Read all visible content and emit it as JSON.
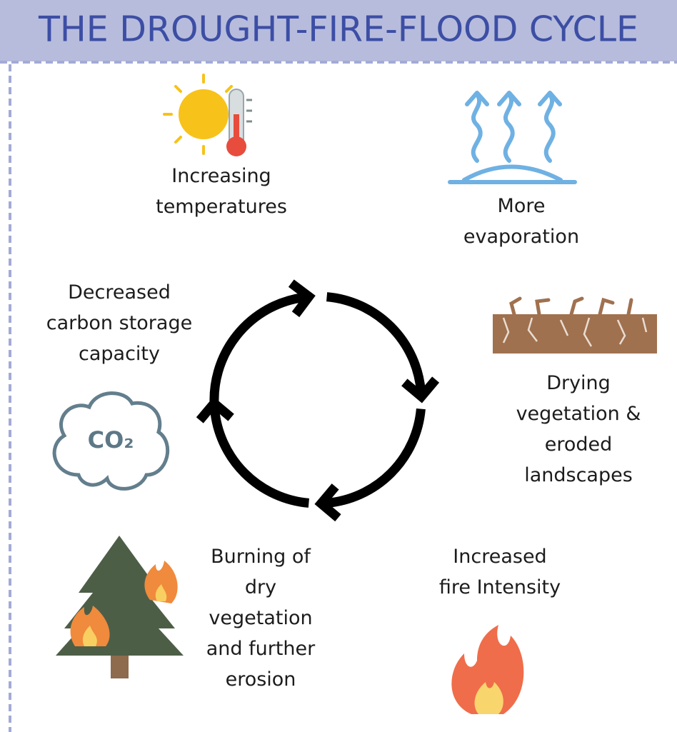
{
  "header": {
    "title": "THE DROUGHT-FIRE-FLOOD CYCLE"
  },
  "nodes": [
    {
      "label": [
        "Increasing",
        "temperatures"
      ]
    },
    {
      "label": [
        "More",
        "evaporation"
      ]
    },
    {
      "label": [
        "Drying",
        "vegetation &",
        "eroded",
        "landscapes"
      ]
    },
    {
      "label": [
        "Increased",
        "fire Intensity"
      ]
    },
    {
      "label": [
        "Burning of",
        "dry",
        "vegetation",
        "and further",
        "erosion"
      ]
    },
    {
      "label": [
        "Decreased",
        "carbon storage",
        "capacity"
      ],
      "icon_label": "CO₂"
    }
  ]
}
